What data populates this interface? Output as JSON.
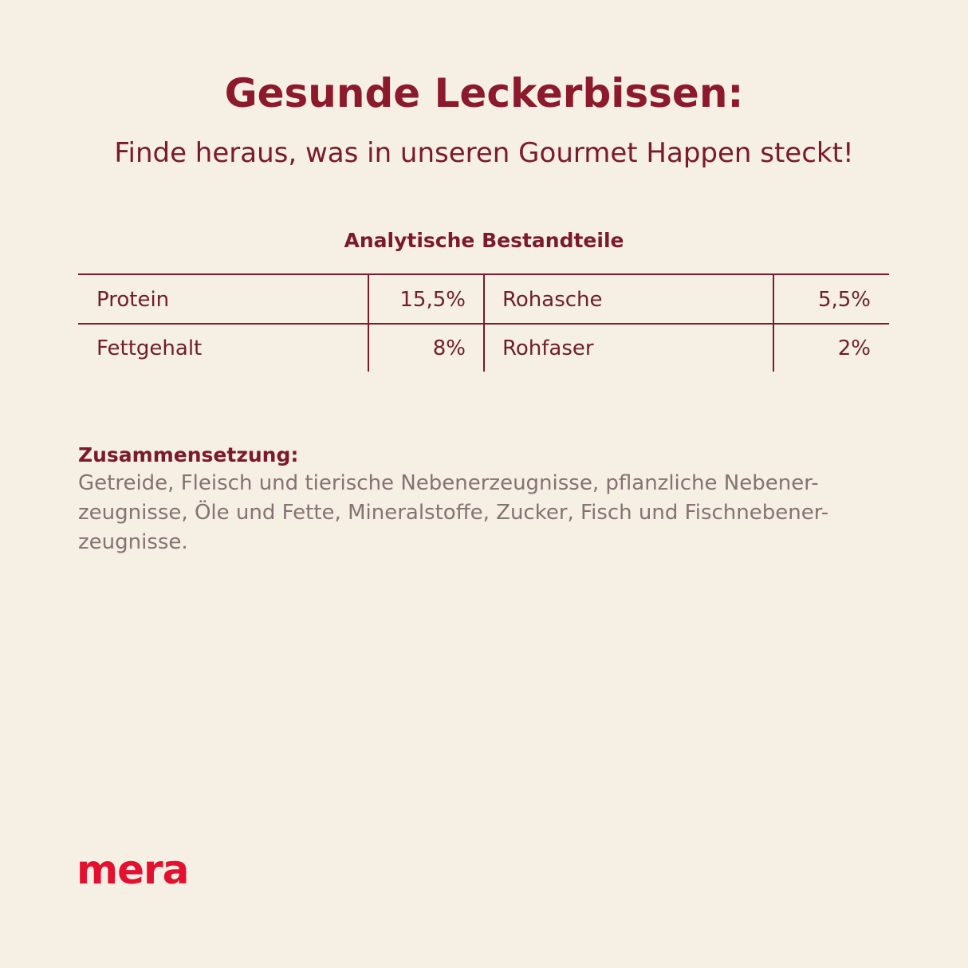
{
  "header": {
    "title": "Gesunde Leckerbissen:",
    "subtitle": "Finde heraus, was in unseren Gourmet Happen steckt!"
  },
  "table": {
    "title": "Analytische Bestandteile",
    "rows": [
      [
        "Protein",
        "15,5%",
        "Rohasche",
        "5,5%"
      ],
      [
        "Fettgehalt",
        "8%",
        "Rohfaser",
        "2%"
      ]
    ]
  },
  "composition": {
    "heading": "Zusammensetzung:",
    "lines": [
      "Getreide, Fleisch und tierische Nebenerzeugnisse, pflanzliche Nebener-",
      "zeugnisse, Öle und Fette, Mineralstoffe, Zucker, Fisch und Fischnebener-",
      "zeugnisse."
    ]
  },
  "logo": "mera"
}
